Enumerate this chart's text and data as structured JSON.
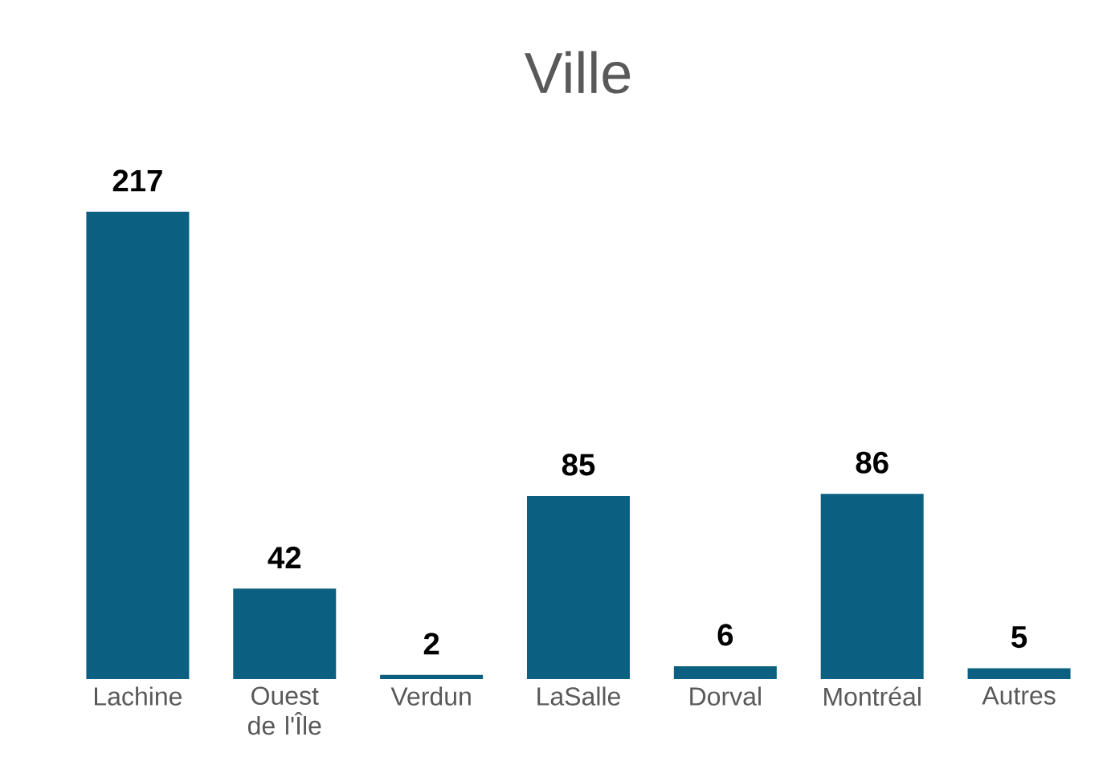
{
  "chart_data": {
    "type": "bar",
    "title": "Ville",
    "categories": [
      "Lachine",
      "Ouest de l'Île",
      "Verdun",
      "LaSalle",
      "Dorval",
      "Montréal",
      "Autres"
    ],
    "values": [
      217,
      42,
      2,
      85,
      6,
      86,
      5
    ],
    "color": "#0b5f80",
    "data_labels": true
  }
}
